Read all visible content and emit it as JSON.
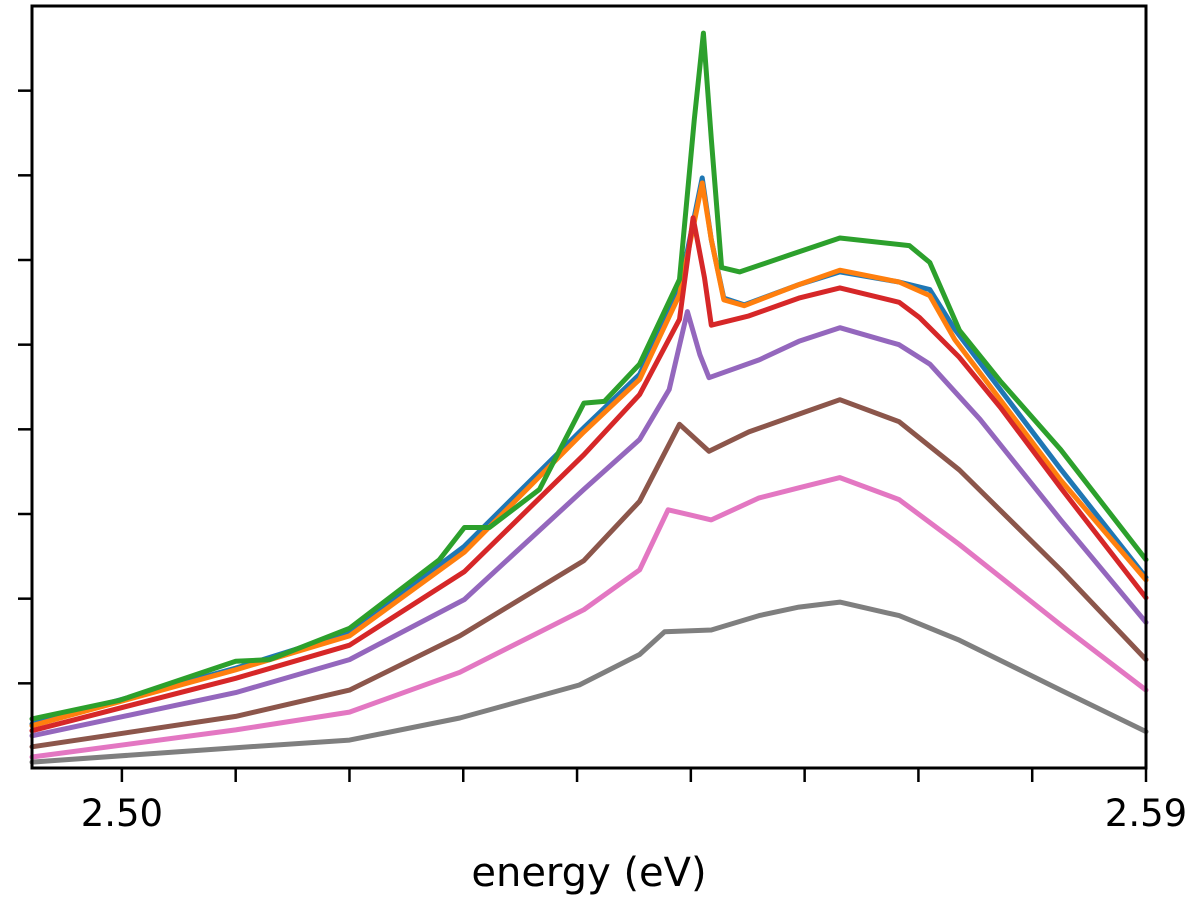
{
  "chart_data": {
    "type": "line",
    "title": "",
    "xlabel": "energy (eV)",
    "ylabel": "",
    "xlim": [
      2.4921,
      2.59
    ],
    "ylim": [
      0,
      9.0
    ],
    "x_tick_values": [
      2.5,
      2.51,
      2.52,
      2.53,
      2.54,
      2.55,
      2.56,
      2.57,
      2.58,
      2.59
    ],
    "x_tick_labels": [
      "2.50",
      "",
      "",
      "",
      "",
      "",
      "",
      "",
      "",
      "2.59"
    ],
    "y_tick_values": [
      1,
      2,
      3,
      4,
      5,
      6,
      7,
      8
    ],
    "y_tick_labels": [
      "",
      "",
      "",
      "",
      "",
      "",
      "",
      ""
    ],
    "grid": false,
    "legend": "none",
    "series": [
      {
        "name": "series-blue",
        "color": "#1f77b4",
        "x": [
          2.4921,
          2.51,
          2.52,
          2.5301,
          2.5406,
          2.5455,
          2.549,
          2.551,
          2.5518,
          2.5529,
          2.5547,
          2.5595,
          2.5631,
          2.5683,
          2.571,
          2.5732,
          2.5772,
          2.5825,
          2.59
        ],
        "y": [
          0.52,
          1.18,
          1.6,
          2.62,
          4.02,
          4.65,
          5.65,
          6.97,
          6.24,
          5.55,
          5.47,
          5.71,
          5.86,
          5.74,
          5.65,
          5.18,
          4.47,
          3.53,
          2.25
        ]
      },
      {
        "name": "series-orange",
        "color": "#ff7f0e",
        "x": [
          2.4921,
          2.51,
          2.52,
          2.5301,
          2.5406,
          2.5455,
          2.549,
          2.551,
          2.5518,
          2.5529,
          2.5547,
          2.5595,
          2.5631,
          2.5683,
          2.571,
          2.5732,
          2.5772,
          2.5825,
          2.59
        ],
        "y": [
          0.5,
          1.16,
          1.56,
          2.55,
          3.97,
          4.59,
          5.59,
          6.91,
          6.24,
          5.53,
          5.46,
          5.71,
          5.88,
          5.74,
          5.58,
          5.06,
          4.35,
          3.4,
          2.22
        ]
      },
      {
        "name": "series-green",
        "color": "#2ca02c",
        "x": [
          2.4921,
          2.4998,
          2.51,
          2.513,
          2.52,
          2.5279,
          2.5301,
          2.5323,
          2.5367,
          2.5406,
          2.5424,
          2.5455,
          2.549,
          2.5503,
          2.5511,
          2.5518,
          2.5527,
          2.5543,
          2.5587,
          2.5631,
          2.5692,
          2.571,
          2.5736,
          2.5772,
          2.5825,
          2.59
        ],
        "y": [
          0.58,
          0.8,
          1.26,
          1.28,
          1.65,
          2.46,
          2.84,
          2.84,
          3.29,
          4.31,
          4.33,
          4.77,
          5.77,
          7.66,
          8.68,
          7.43,
          5.91,
          5.86,
          6.06,
          6.26,
          6.17,
          5.97,
          5.17,
          4.57,
          3.76,
          2.46
        ]
      },
      {
        "name": "series-red",
        "color": "#d62728",
        "x": [
          2.4921,
          2.51,
          2.52,
          2.5301,
          2.5406,
          2.5455,
          2.549,
          2.5502,
          2.5512,
          2.5518,
          2.5551,
          2.5595,
          2.5631,
          2.5683,
          2.5701,
          2.5736,
          2.5772,
          2.5825,
          2.59
        ],
        "y": [
          0.44,
          1.06,
          1.45,
          2.32,
          3.7,
          4.41,
          5.3,
          6.5,
          5.79,
          5.23,
          5.34,
          5.55,
          5.67,
          5.5,
          5.32,
          4.85,
          4.26,
          3.31,
          2.01
        ]
      },
      {
        "name": "series-purple",
        "color": "#9467bd",
        "x": [
          2.4921,
          2.51,
          2.52,
          2.5301,
          2.5406,
          2.5455,
          2.5481,
          2.5497,
          2.5508,
          2.5516,
          2.556,
          2.5595,
          2.5631,
          2.5683,
          2.571,
          2.5754,
          2.5825,
          2.59
        ],
        "y": [
          0.38,
          0.89,
          1.28,
          1.99,
          3.29,
          3.88,
          4.47,
          5.39,
          4.88,
          4.61,
          4.82,
          5.04,
          5.2,
          5.0,
          4.77,
          4.12,
          2.93,
          1.72
        ]
      },
      {
        "name": "series-brown",
        "color": "#8c564b",
        "x": [
          2.4921,
          2.51,
          2.52,
          2.5297,
          2.5406,
          2.5455,
          2.549,
          2.5516,
          2.5551,
          2.5595,
          2.5631,
          2.5683,
          2.5736,
          2.5825,
          2.59
        ],
        "y": [
          0.25,
          0.61,
          0.92,
          1.56,
          2.45,
          3.15,
          4.06,
          3.74,
          3.97,
          4.18,
          4.35,
          4.09,
          3.52,
          2.34,
          1.28
        ]
      },
      {
        "name": "series-pink",
        "color": "#e377c2",
        "x": [
          2.4921,
          2.51,
          2.52,
          2.5297,
          2.5406,
          2.5455,
          2.548,
          2.5499,
          2.5518,
          2.556,
          2.5595,
          2.5631,
          2.5683,
          2.5736,
          2.5825,
          2.59
        ],
        "y": [
          0.13,
          0.45,
          0.66,
          1.13,
          1.87,
          2.34,
          3.05,
          2.99,
          2.93,
          3.19,
          3.31,
          3.43,
          3.17,
          2.64,
          1.69,
          0.92
        ]
      },
      {
        "name": "series-gray",
        "color": "#7f7f7f",
        "x": [
          2.4921,
          2.51,
          2.52,
          2.5297,
          2.5402,
          2.5455,
          2.5477,
          2.5518,
          2.556,
          2.5595,
          2.5631,
          2.5683,
          2.5736,
          2.5825,
          2.59
        ],
        "y": [
          0.07,
          0.24,
          0.33,
          0.59,
          0.98,
          1.34,
          1.61,
          1.63,
          1.8,
          1.9,
          1.96,
          1.8,
          1.51,
          0.92,
          0.43
        ]
      }
    ]
  }
}
